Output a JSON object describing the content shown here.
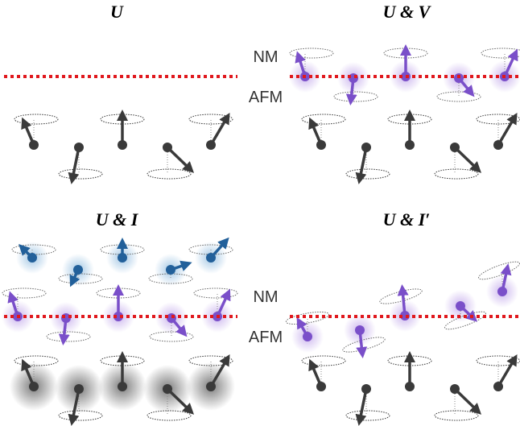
{
  "panels": [
    {
      "title": "U"
    },
    {
      "title": "U & V"
    },
    {
      "title": "U & I"
    },
    {
      "title": "U & I′"
    }
  ],
  "layer_labels": [
    {
      "nm": "NM",
      "afm": "AFM"
    },
    {
      "nm": "NM",
      "afm": "AFM"
    }
  ]
}
